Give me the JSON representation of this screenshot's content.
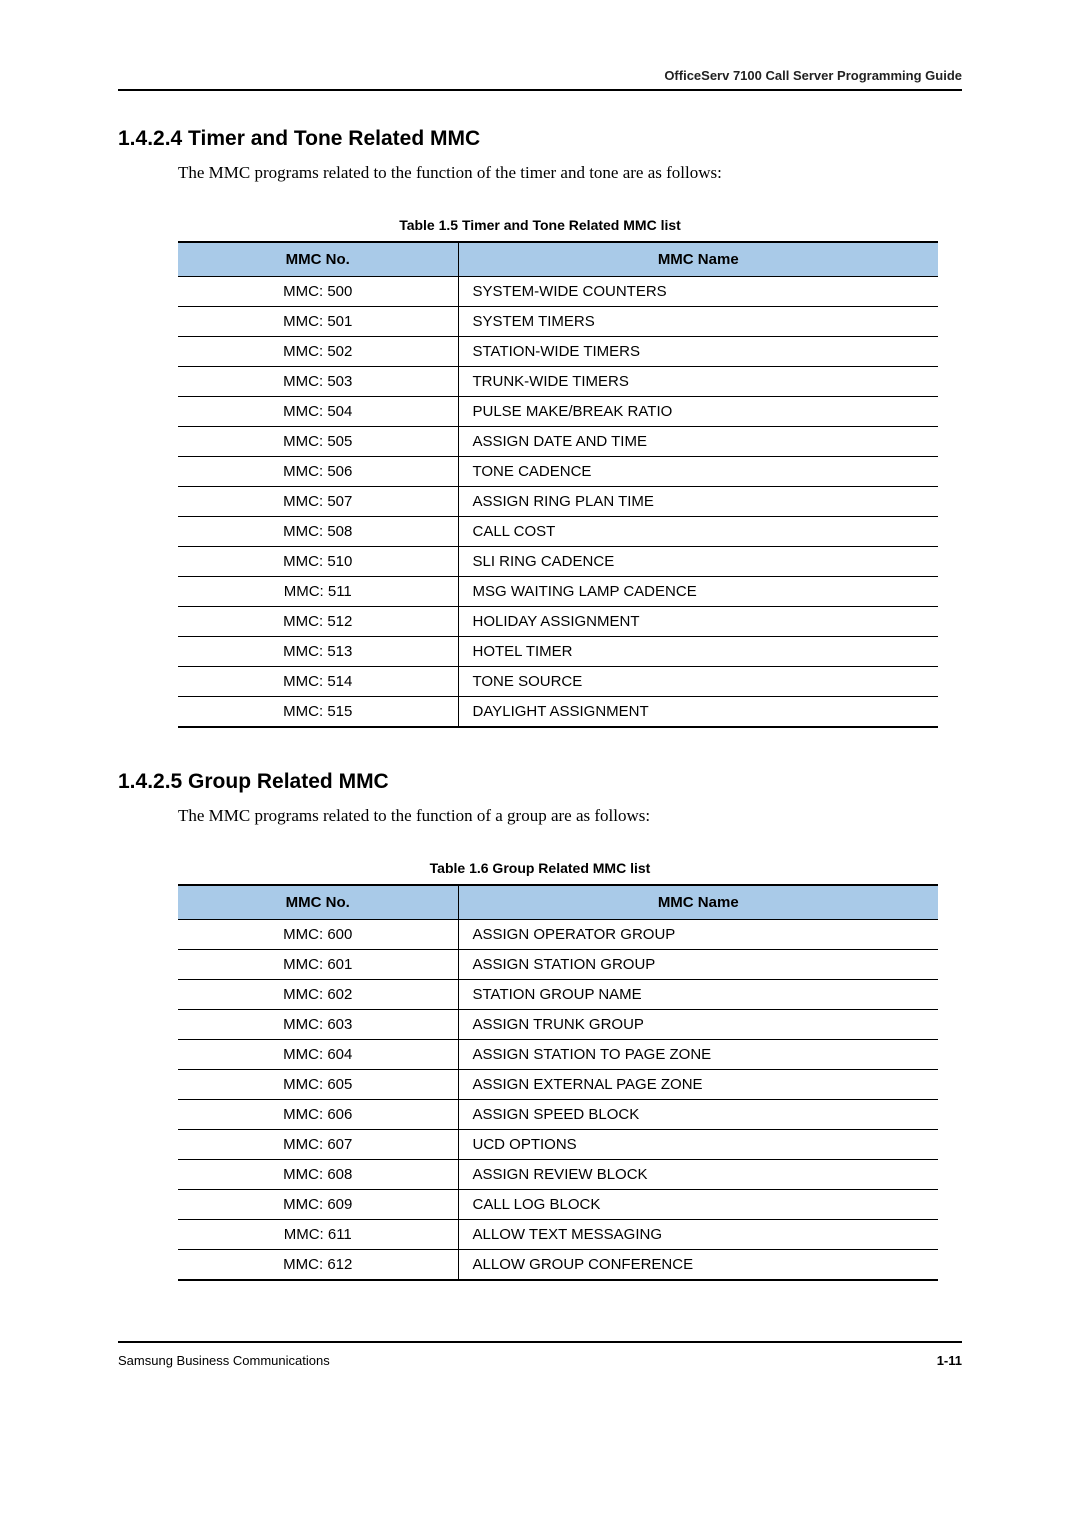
{
  "running_head": "OfficeServ 7100 Call Server Programming Guide",
  "section1": {
    "number_title": "1.4.2.4  Timer and Tone Related MMC",
    "intro": "The MMC programs related to the function of the timer and tone are as follows:",
    "table_caption": "Table 1.5    Timer and Tone Related MMC list",
    "columns": {
      "no": "MMC No.",
      "name": "MMC Name"
    },
    "rows": [
      {
        "no": "MMC: 500",
        "name": "SYSTEM-WIDE COUNTERS"
      },
      {
        "no": "MMC: 501",
        "name": "SYSTEM TIMERS"
      },
      {
        "no": "MMC: 502",
        "name": "STATION-WIDE TIMERS"
      },
      {
        "no": "MMC: 503",
        "name": "TRUNK-WIDE TIMERS"
      },
      {
        "no": "MMC: 504",
        "name": "PULSE MAKE/BREAK RATIO"
      },
      {
        "no": "MMC: 505",
        "name": "ASSIGN DATE AND TIME"
      },
      {
        "no": "MMC: 506",
        "name": "TONE CADENCE"
      },
      {
        "no": "MMC: 507",
        "name": "ASSIGN RING PLAN TIME"
      },
      {
        "no": "MMC: 508",
        "name": "CALL COST"
      },
      {
        "no": "MMC: 510",
        "name": "SLI RING CADENCE"
      },
      {
        "no": "MMC: 511",
        "name": "MSG WAITING LAMP CADENCE"
      },
      {
        "no": "MMC: 512",
        "name": "HOLIDAY ASSIGNMENT"
      },
      {
        "no": "MMC: 513",
        "name": "HOTEL TIMER"
      },
      {
        "no": "MMC: 514",
        "name": "TONE SOURCE"
      },
      {
        "no": "MMC: 515",
        "name": "DAYLIGHT ASSIGNMENT"
      }
    ]
  },
  "section2": {
    "number_title": "1.4.2.5  Group Related MMC",
    "intro": "The MMC programs related to the function of a group are as follows:",
    "table_caption": "Table 1.6    Group Related MMC list",
    "columns": {
      "no": "MMC No.",
      "name": "MMC Name"
    },
    "rows": [
      {
        "no": "MMC: 600",
        "name": "ASSIGN OPERATOR GROUP"
      },
      {
        "no": "MMC: 601",
        "name": "ASSIGN STATION GROUP"
      },
      {
        "no": "MMC: 602",
        "name": "STATION GROUP NAME"
      },
      {
        "no": "MMC: 603",
        "name": "ASSIGN TRUNK GROUP"
      },
      {
        "no": "MMC: 604",
        "name": "ASSIGN STATION TO PAGE ZONE"
      },
      {
        "no": "MMC: 605",
        "name": "ASSIGN EXTERNAL PAGE ZONE"
      },
      {
        "no": "MMC: 606",
        "name": "ASSIGN SPEED BLOCK"
      },
      {
        "no": "MMC: 607",
        "name": "UCD OPTIONS"
      },
      {
        "no": "MMC: 608",
        "name": "ASSIGN REVIEW BLOCK"
      },
      {
        "no": "MMC: 609",
        "name": "CALL LOG BLOCK"
      },
      {
        "no": "MMC: 611",
        "name": "ALLOW TEXT MESSAGING"
      },
      {
        "no": "MMC: 612",
        "name": "ALLOW GROUP CONFERENCE"
      }
    ]
  },
  "footer": {
    "left": "Samsung Business Communications",
    "right": "1-11"
  },
  "style": {
    "header_bg": "#a9cae8",
    "rule_color": "#000000",
    "body_font_size": 15,
    "heading_font_size": 21
  }
}
